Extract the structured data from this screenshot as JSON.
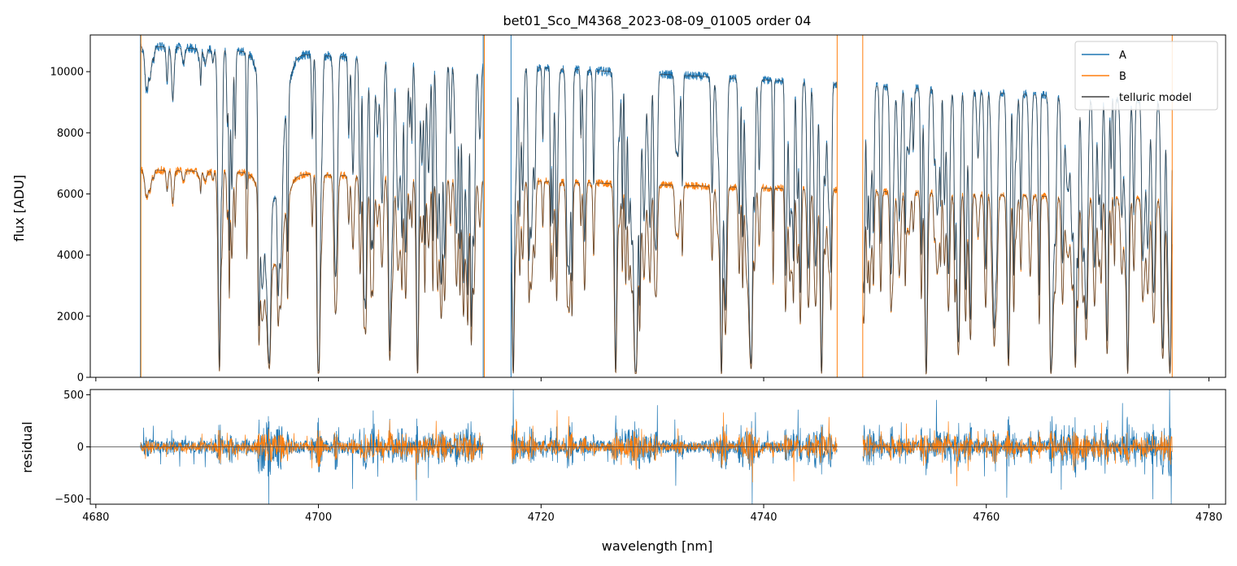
{
  "chart_data": [
    {
      "type": "line",
      "title": "bet01_Sco_M4368_2023-08-09_01005  order 04",
      "xlabel": "",
      "ylabel": "flux [ADU]",
      "xlim": [
        4679.5,
        4781.5
      ],
      "ylim": [
        0,
        11200
      ],
      "x_ticks": [
        4680,
        4700,
        4720,
        4740,
        4760,
        4780
      ],
      "y_ticks": [
        0,
        2000,
        4000,
        6000,
        8000,
        10000
      ],
      "y_tick_labels": [
        "0",
        "2000",
        "4000",
        "6000",
        "8000",
        "10000"
      ],
      "x_tick_labels_shown": false,
      "grid": false,
      "legend_position": "top-right",
      "data_range_x": [
        4684.0,
        4776.7
      ],
      "gaps_x": [
        [
          4714.8,
          4717.3
        ],
        [
          4746.6,
          4748.9
        ]
      ],
      "series": [
        {
          "name": "A",
          "color": "#1f77b4",
          "continuum_start": 10850,
          "continuum_end": 9000,
          "line_depths": [
            [
              4691.1,
              0.97
            ],
            [
              4695.6,
              0.85
            ],
            [
              4700.0,
              0.99
            ],
            [
              4701.5,
              0.6
            ],
            [
              4706.4,
              0.9
            ],
            [
              4708.9,
              0.99
            ],
            [
              4717.5,
              0.99
            ],
            [
              4726.7,
              0.98
            ],
            [
              4728.5,
              0.99
            ],
            [
              4736.2,
              0.99
            ],
            [
              4738.9,
              0.88
            ],
            [
              4745.2,
              0.99
            ],
            [
              4754.6,
              0.99
            ],
            [
              4762.0,
              0.9
            ],
            [
              4765.8,
              0.98
            ],
            [
              4768.0,
              0.9
            ],
            [
              4772.7,
              0.98
            ],
            [
              4776.5,
              0.95
            ]
          ]
        },
        {
          "name": "B",
          "color": "#ff7f0e",
          "continuum_start": 6800,
          "continuum_end": 5800
        },
        {
          "name": "telluric model",
          "color": "#404040"
        }
      ]
    },
    {
      "type": "line",
      "title": "",
      "xlabel": "wavelength [nm]",
      "ylabel": "residual",
      "xlim": [
        4679.5,
        4781.5
      ],
      "ylim": [
        -550,
        550
      ],
      "x_ticks": [
        4680,
        4700,
        4720,
        4740,
        4760,
        4780
      ],
      "x_tick_labels": [
        "4680",
        "4700",
        "4720",
        "4740",
        "4760",
        "4780"
      ],
      "y_ticks": [
        -500,
        0,
        500
      ],
      "y_tick_labels": [
        "−500",
        "0",
        "500"
      ],
      "zero_line": true,
      "grid": false,
      "series": [
        {
          "name": "A",
          "color": "#1f77b4",
          "noise_amplitude": 180
        },
        {
          "name": "B",
          "color": "#ff7f0e",
          "noise_amplitude": 120
        }
      ]
    }
  ]
}
